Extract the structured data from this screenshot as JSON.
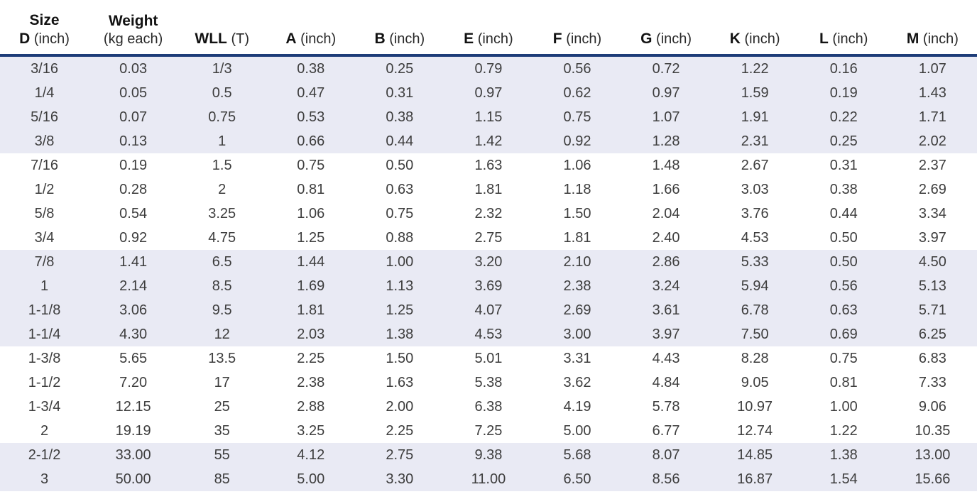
{
  "colors": {
    "header_rule": "#1d3c78",
    "band": "#e9eaf4",
    "text": "#3d3d3d",
    "header_text": "#121212"
  },
  "table": {
    "columns": [
      {
        "top": "Size",
        "bottom_bold": "D",
        "bottom_rest": "(inch)"
      },
      {
        "top": "Weight",
        "bottom_bold": "",
        "bottom_rest": "(kg each)"
      },
      {
        "top": "",
        "bottom_bold": "WLL",
        "bottom_rest": "(T)"
      },
      {
        "top": "",
        "bottom_bold": "A",
        "bottom_rest": "(inch)"
      },
      {
        "top": "",
        "bottom_bold": "B",
        "bottom_rest": "(inch)"
      },
      {
        "top": "",
        "bottom_bold": "E",
        "bottom_rest": "(inch)"
      },
      {
        "top": "",
        "bottom_bold": "F",
        "bottom_rest": "(inch)"
      },
      {
        "top": "",
        "bottom_bold": "G",
        "bottom_rest": "(inch)"
      },
      {
        "top": "",
        "bottom_bold": "K",
        "bottom_rest": "(inch)"
      },
      {
        "top": "",
        "bottom_bold": "L",
        "bottom_rest": "(inch)"
      },
      {
        "top": "",
        "bottom_bold": "M",
        "bottom_rest": "(inch)"
      }
    ],
    "rows": [
      [
        "3/16",
        "0.03",
        "1/3",
        "0.38",
        "0.25",
        "0.79",
        "0.56",
        "0.72",
        "1.22",
        "0.16",
        "1.07"
      ],
      [
        "1/4",
        "0.05",
        "0.5",
        "0.47",
        "0.31",
        "0.97",
        "0.62",
        "0.97",
        "1.59",
        "0.19",
        "1.43"
      ],
      [
        "5/16",
        "0.07",
        "0.75",
        "0.53",
        "0.38",
        "1.15",
        "0.75",
        "1.07",
        "1.91",
        "0.22",
        "1.71"
      ],
      [
        "3/8",
        "0.13",
        "1",
        "0.66",
        "0.44",
        "1.42",
        "0.92",
        "1.28",
        "2.31",
        "0.25",
        "2.02"
      ],
      [
        "7/16",
        "0.19",
        "1.5",
        "0.75",
        "0.50",
        "1.63",
        "1.06",
        "1.48",
        "2.67",
        "0.31",
        "2.37"
      ],
      [
        "1/2",
        "0.28",
        "2",
        "0.81",
        "0.63",
        "1.81",
        "1.18",
        "1.66",
        "3.03",
        "0.38",
        "2.69"
      ],
      [
        "5/8",
        "0.54",
        "3.25",
        "1.06",
        "0.75",
        "2.32",
        "1.50",
        "2.04",
        "3.76",
        "0.44",
        "3.34"
      ],
      [
        "3/4",
        "0.92",
        "4.75",
        "1.25",
        "0.88",
        "2.75",
        "1.81",
        "2.40",
        "4.53",
        "0.50",
        "3.97"
      ],
      [
        "7/8",
        "1.41",
        "6.5",
        "1.44",
        "1.00",
        "3.20",
        "2.10",
        "2.86",
        "5.33",
        "0.50",
        "4.50"
      ],
      [
        "1",
        "2.14",
        "8.5",
        "1.69",
        "1.13",
        "3.69",
        "2.38",
        "3.24",
        "5.94",
        "0.56",
        "5.13"
      ],
      [
        "1-1/8",
        "3.06",
        "9.5",
        "1.81",
        "1.25",
        "4.07",
        "2.69",
        "3.61",
        "6.78",
        "0.63",
        "5.71"
      ],
      [
        "1-1/4",
        "4.30",
        "12",
        "2.03",
        "1.38",
        "4.53",
        "3.00",
        "3.97",
        "7.50",
        "0.69",
        "6.25"
      ],
      [
        "1-3/8",
        "5.65",
        "13.5",
        "2.25",
        "1.50",
        "5.01",
        "3.31",
        "4.43",
        "8.28",
        "0.75",
        "6.83"
      ],
      [
        "1-1/2",
        "7.20",
        "17",
        "2.38",
        "1.63",
        "5.38",
        "3.62",
        "4.84",
        "9.05",
        "0.81",
        "7.33"
      ],
      [
        "1-3/4",
        "12.15",
        "25",
        "2.88",
        "2.00",
        "6.38",
        "4.19",
        "5.78",
        "10.97",
        "1.00",
        "9.06"
      ],
      [
        "2",
        "19.19",
        "35",
        "3.25",
        "2.25",
        "7.25",
        "5.00",
        "6.77",
        "12.74",
        "1.22",
        "10.35"
      ],
      [
        "2-1/2",
        "33.00",
        "55",
        "4.12",
        "2.75",
        "9.38",
        "5.68",
        "8.07",
        "14.85",
        "1.38",
        "13.00"
      ],
      [
        "3",
        "50.00",
        "85",
        "5.00",
        "3.30",
        "11.00",
        "6.50",
        "8.56",
        "16.87",
        "1.54",
        "15.66"
      ]
    ],
    "band_group_size": 4
  }
}
